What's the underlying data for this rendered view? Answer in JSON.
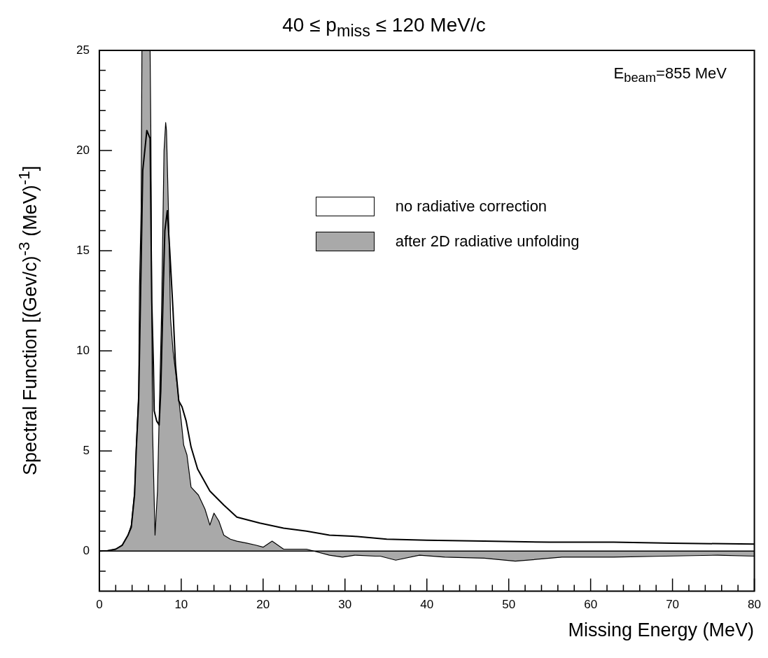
{
  "chart_data": {
    "type": "line",
    "title": "40 ≤ p$_{miss}$ ≤ 120 MeV/c",
    "xlabel": "Missing Energy (MeV)",
    "ylabel": "Spectral Function [(Gev/c)$^{-3}$ (MeV)$^{-1}$]",
    "annotations": [
      "E$_{beam}$=855 MeV"
    ],
    "xlim": [
      0,
      80
    ],
    "xticks": [
      0,
      {
        "value": 2,
        "label": null
      },
      {
        "value": 4,
        "label": null
      },
      {
        "value": 6,
        "label": null
      },
      {
        "value": 8,
        "label": null
      },
      10,
      {
        "value": 12,
        "label": null
      },
      {
        "value": 14,
        "label": null
      },
      {
        "value": 16,
        "label": null
      },
      {
        "value": 18,
        "label": null
      },
      20,
      {
        "value": 22,
        "label": null
      },
      {
        "value": 24,
        "label": null
      },
      {
        "value": 26,
        "label": null
      },
      {
        "value": 28,
        "label": null
      },
      30,
      {
        "value": 32,
        "label": null
      },
      {
        "value": 34,
        "label": null
      },
      {
        "value": 36,
        "label": null
      },
      {
        "value": 38,
        "label": null
      },
      40,
      {
        "value": 42,
        "label": null
      },
      {
        "value": 44,
        "label": null
      },
      {
        "value": 46,
        "label": null
      },
      {
        "value": 48,
        "label": null
      },
      50,
      {
        "value": 52,
        "label": null
      },
      {
        "value": 54,
        "label": null
      },
      {
        "value": 56,
        "label": null
      },
      {
        "value": 58,
        "label": null
      },
      60,
      {
        "value": 62,
        "label": null
      },
      {
        "value": 64,
        "label": null
      },
      {
        "value": 66,
        "label": null
      },
      {
        "value": 68,
        "label": null
      },
      70,
      {
        "value": 72,
        "label": null
      },
      {
        "value": 74,
        "label": null
      },
      {
        "value": 76,
        "label": null
      },
      {
        "value": 78,
        "label": null
      },
      80
    ],
    "ylim": [
      -2,
      25
    ],
    "yticks": [
      {
        "value": -1,
        "label": null
      },
      0,
      {
        "value": 1,
        "label": null
      },
      {
        "value": 2,
        "label": null
      },
      {
        "value": 3,
        "label": null
      },
      {
        "value": 4,
        "label": null
      },
      5,
      {
        "value": 6,
        "label": null
      },
      {
        "value": 7,
        "label": null
      },
      {
        "value": 8,
        "label": null
      },
      {
        "value": 9,
        "label": null
      },
      10,
      {
        "value": 11,
        "label": null
      },
      {
        "value": 12,
        "label": null
      },
      {
        "value": 13,
        "label": null
      },
      {
        "value": 14,
        "label": null
      },
      15,
      {
        "value": 16,
        "label": null
      },
      {
        "value": 17,
        "label": null
      },
      {
        "value": 18,
        "label": null
      },
      {
        "value": 19,
        "label": null
      },
      20,
      {
        "value": 21,
        "label": null
      },
      {
        "value": 22,
        "label": null
      },
      {
        "value": 23,
        "label": null
      },
      {
        "value": 24,
        "label": null
      },
      25
    ],
    "grid": false,
    "ref_lines": [
      {
        "axis": "y",
        "value": 0,
        "color": "#000000"
      }
    ],
    "legend": "top right",
    "series": [
      {
        "name": "after 2D radiative unfolding",
        "type": "area",
        "color": "#a9a9a9",
        "x": [
          0,
          1,
          2,
          2.8,
          3.5,
          3.9,
          4.3,
          4.5,
          4.8,
          4.9,
          5.1,
          5.2,
          6.2,
          6.3,
          6.4,
          6.5,
          6.8,
          7.1,
          7.6,
          7.9,
          8.1,
          8.2,
          8.5,
          8.7,
          9.0,
          9.5,
          10.0,
          10.3,
          10.7,
          11.2,
          12.1,
          12.9,
          13.5,
          14.0,
          14.6,
          15.2,
          16.0,
          16.8,
          18.0,
          19.1,
          20.0,
          21.1,
          22.5,
          25.3,
          28.1,
          29.7,
          31.2,
          33.7,
          34.3,
          36.2,
          39.1,
          42.2,
          47,
          50.8,
          56.5,
          62.8,
          69.1,
          75.5,
          80
        ],
        "values": [
          0,
          0.02,
          0.1,
          0.3,
          0.8,
          1.3,
          3,
          5.2,
          8,
          13.2,
          17,
          25,
          25,
          20.5,
          12.2,
          6,
          0.8,
          3,
          12,
          20,
          21.4,
          21,
          16,
          11.6,
          10,
          8.3,
          6.5,
          5.3,
          4.8,
          3.2,
          2.8,
          2.1,
          1.3,
          1.9,
          1.5,
          0.8,
          0.6,
          0.5,
          0.4,
          0.3,
          0.2,
          0.5,
          0.1,
          0.1,
          -0.2,
          -0.3,
          -0.2,
          -0.25,
          -0.25,
          -0.45,
          -0.2,
          -0.3,
          -0.35,
          -0.5,
          -0.3,
          -0.3,
          -0.25,
          -0.2,
          -0.25
        ]
      },
      {
        "name": "no radiative correction",
        "color": "#000000",
        "x": [
          0,
          1,
          2,
          2.8,
          3.5,
          3.9,
          4.3,
          4.5,
          4.8,
          5.0,
          5.3,
          5.8,
          6.2,
          6.4,
          6.6,
          6.7,
          7.0,
          7.3,
          7.5,
          7.8,
          8.0,
          8.3,
          8.6,
          9.0,
          9.3,
          9.7,
          10.1,
          10.6,
          11.2,
          12.0,
          13.5,
          15.2,
          16.8,
          19.6,
          22.5,
          25.3,
          28.1,
          30.9,
          35.1,
          40,
          47,
          55,
          62.8,
          70,
          80
        ],
        "values": [
          0,
          0.02,
          0.1,
          0.3,
          0.8,
          1.2,
          2.8,
          5,
          7.5,
          12,
          19,
          21,
          20.6,
          12.5,
          9.3,
          7,
          6.5,
          6.3,
          8,
          13,
          16,
          17,
          15,
          12,
          9.3,
          7.5,
          7.2,
          6.5,
          5.2,
          4.1,
          3.0,
          2.3,
          1.7,
          1.4,
          1.15,
          1.0,
          0.8,
          0.75,
          0.6,
          0.55,
          0.5,
          0.45,
          0.45,
          0.4,
          0.35
        ]
      }
    ]
  }
}
